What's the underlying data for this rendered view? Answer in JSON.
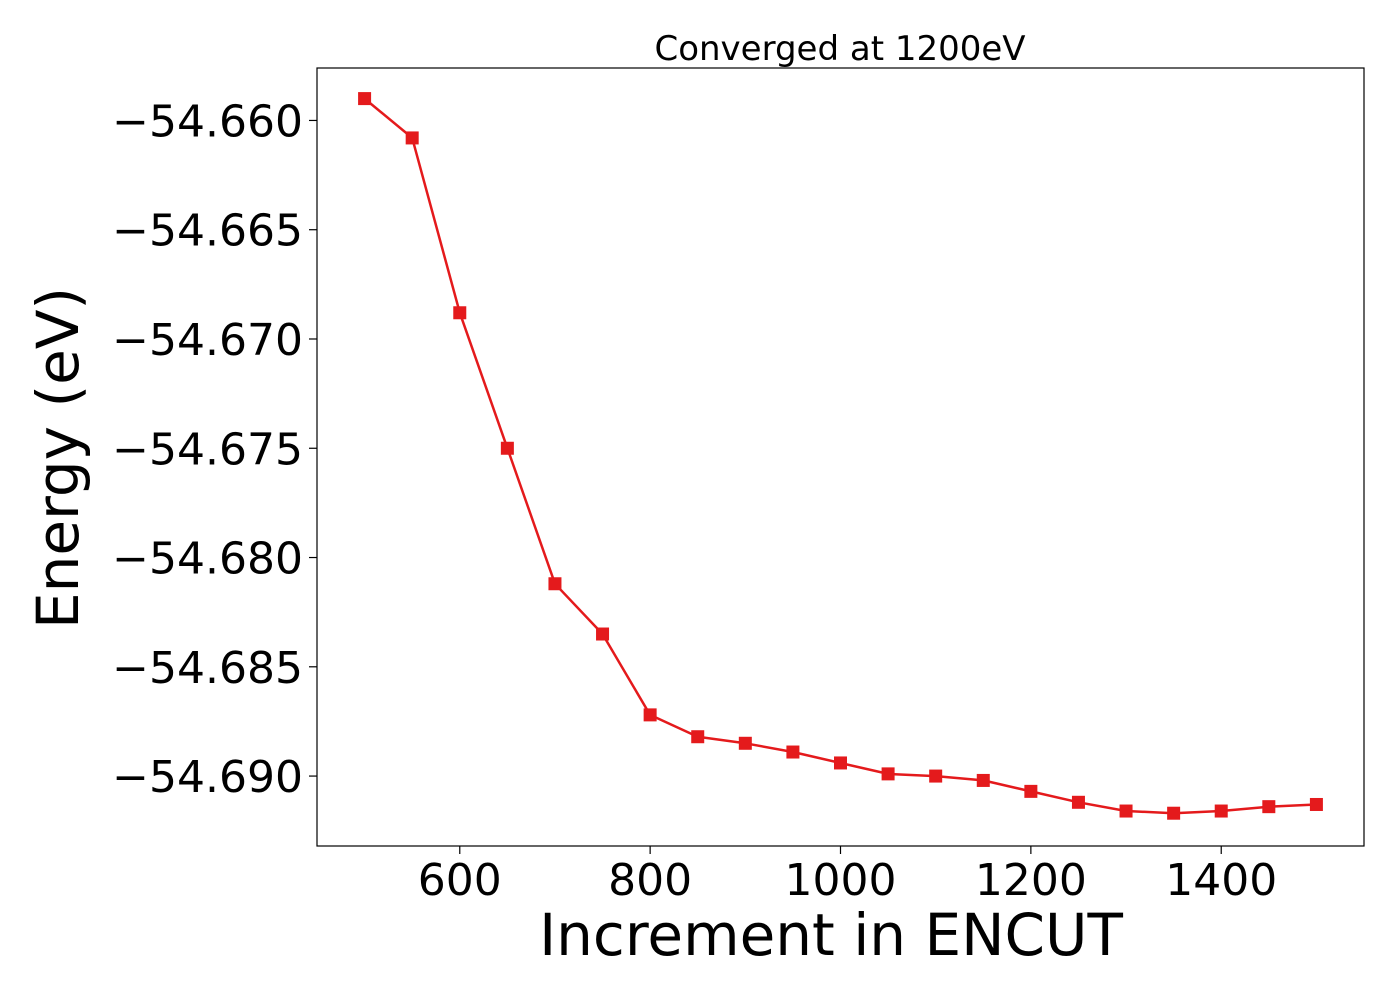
{
  "chart_data": {
    "type": "line",
    "title": "Converged at 1200eV",
    "xlabel": "Increment in ENCUT",
    "ylabel": "Energy (eV)",
    "x": [
      500,
      550,
      600,
      650,
      700,
      750,
      800,
      850,
      900,
      950,
      1000,
      1050,
      1100,
      1150,
      1200,
      1250,
      1300,
      1350,
      1400,
      1450,
      1500
    ],
    "series": [
      {
        "values": [
          -54.659,
          -54.6608,
          -54.6688,
          -54.675,
          -54.6812,
          -54.6835,
          -54.6872,
          -54.6882,
          -54.6885,
          -54.6889,
          -54.6894,
          -54.6899,
          -54.69,
          -54.6902,
          -54.6907,
          -54.6912,
          -54.6916,
          -54.6917,
          -54.6916,
          -54.6914,
          -54.6913
        ],
        "color": "#e41a1c",
        "marker": "square"
      }
    ],
    "xlim": [
      450,
      1550
    ],
    "ylim": [
      -54.6932,
      -54.6576
    ],
    "xticks": [
      600,
      800,
      1000,
      1200,
      1400
    ],
    "xtick_labels": [
      "600",
      "800",
      "1000",
      "1200",
      "1400"
    ],
    "yticks": [
      -54.66,
      -54.665,
      -54.67,
      -54.675,
      -54.68,
      -54.685,
      -54.69
    ],
    "ytick_labels": [
      "−54.660",
      "−54.665",
      "−54.670",
      "−54.675",
      "−54.680",
      "−54.685",
      "−54.690"
    ],
    "grid": false,
    "legend": "none"
  }
}
